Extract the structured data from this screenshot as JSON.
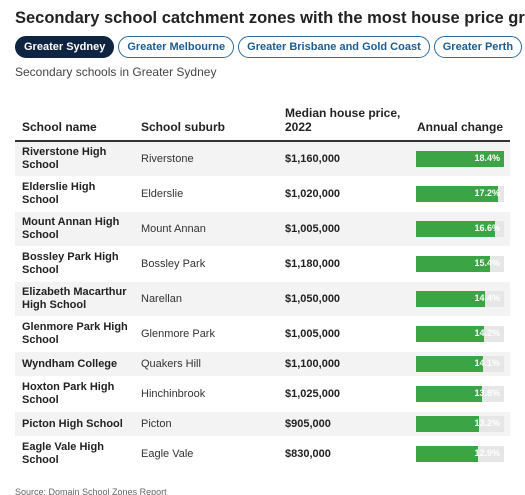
{
  "title": "Secondary school catchment zones with the most house price growth",
  "tabs": [
    "Greater Sydney",
    "Greater Melbourne",
    "Greater Brisbane and Gold Coast",
    "Greater Perth"
  ],
  "subtitle": "Secondary schools in Greater Sydney",
  "table": {
    "columns": [
      "School name",
      "School suburb",
      "Median house price, 2022",
      "Annual change"
    ],
    "rows": [
      {
        "school": "Riverstone High School",
        "suburb": "Riverstone",
        "price": "$1,160,000",
        "change": {
          "value": 18.4,
          "label": "18.4%"
        }
      },
      {
        "school": "Elderslie High School",
        "suburb": "Elderslie",
        "price": "$1,020,000",
        "change": {
          "value": 17.2,
          "label": "17.2%"
        }
      },
      {
        "school": "Mount Annan High School",
        "suburb": "Mount Annan",
        "price": "$1,005,000",
        "change": {
          "value": 16.6,
          "label": "16.6%"
        }
      },
      {
        "school": "Bossley Park High School",
        "suburb": "Bossley Park",
        "price": "$1,180,000",
        "change": {
          "value": 15.4,
          "label": "15.4%"
        }
      },
      {
        "school": "Elizabeth Macarthur High School",
        "suburb": "Narellan",
        "price": "$1,050,000",
        "change": {
          "value": 14.4,
          "label": "14.4%"
        }
      },
      {
        "school": "Glenmore Park High School",
        "suburb": "Glenmore Park",
        "price": "$1,005,000",
        "change": {
          "value": 14.2,
          "label": "14.2%"
        }
      },
      {
        "school": "Wyndham College",
        "suburb": "Quakers Hill",
        "price": "$1,100,000",
        "change": {
          "value": 14.1,
          "label": "14.1%"
        }
      },
      {
        "school": "Hoxton Park High School",
        "suburb": "Hinchinbrook",
        "price": "$1,025,000",
        "change": {
          "value": 13.8,
          "label": "13.8%"
        }
      },
      {
        "school": "Picton High School",
        "suburb": "Picton",
        "price": "$905,000",
        "change": {
          "value": 13.2,
          "label": "13.2%"
        }
      },
      {
        "school": "Eagle Vale High School",
        "suburb": "Eagle Vale",
        "price": "$830,000",
        "change": {
          "value": 12.9,
          "label": "12.9%"
        }
      }
    ]
  },
  "source": "Source: Domain School Zones Report"
}
